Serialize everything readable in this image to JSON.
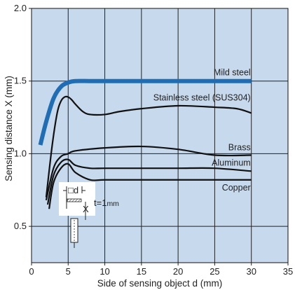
{
  "chart_data": {
    "type": "line",
    "xlabel": "Side of sensing object d (mm)",
    "ylabel": "Sensing distance X (mm)",
    "xlim": [
      0,
      35
    ],
    "ylim": [
      0.25,
      2.0
    ],
    "x_ticks": [
      "0",
      "5",
      "10",
      "15",
      "20",
      "25",
      "30",
      "35"
    ],
    "y_ticks": [
      "0.5",
      "1.0",
      "1.5",
      "2.0"
    ],
    "grid": true,
    "plot_background": "#c7d9ec",
    "series": [
      {
        "name": "Mild steel",
        "color": "#1f6eb5",
        "emphasis": true,
        "x": [
          1.2,
          2,
          3,
          4,
          5,
          6,
          8,
          10,
          15,
          20,
          25,
          30
        ],
        "y": [
          1.06,
          1.22,
          1.38,
          1.46,
          1.49,
          1.5,
          1.5,
          1.5,
          1.5,
          1.5,
          1.5,
          1.5
        ]
      },
      {
        "name": "Stainless steel (SUS304)",
        "color": "#111111",
        "x": [
          2,
          2.8,
          3.5,
          4,
          4.5,
          5,
          5.5,
          6,
          7,
          8,
          10,
          12,
          15,
          20,
          25,
          28,
          30
        ],
        "y": [
          0.7,
          1.05,
          1.28,
          1.36,
          1.39,
          1.39,
          1.37,
          1.34,
          1.29,
          1.27,
          1.27,
          1.29,
          1.31,
          1.33,
          1.32,
          1.31,
          1.28
        ]
      },
      {
        "name": "Brass",
        "color": "#111111",
        "x": [
          2,
          3,
          4,
          5,
          6,
          10,
          15,
          20,
          25,
          30
        ],
        "y": [
          0.68,
          0.9,
          0.98,
          1.0,
          1.02,
          1.04,
          1.05,
          1.03,
          0.99,
          0.99
        ]
      },
      {
        "name": "Aluminum",
        "color": "#111111",
        "x": [
          2.2,
          3,
          4,
          5,
          6,
          8,
          10,
          15,
          20,
          25,
          30
        ],
        "y": [
          0.65,
          0.85,
          0.94,
          0.96,
          0.92,
          0.9,
          0.9,
          0.9,
          0.9,
          0.9,
          0.88
        ]
      },
      {
        "name": "Copper",
        "color": "#111111",
        "x": [
          2.4,
          3,
          4,
          5,
          6,
          8,
          10,
          15,
          20,
          25,
          30
        ],
        "y": [
          0.62,
          0.8,
          0.9,
          0.93,
          0.87,
          0.82,
          0.82,
          0.82,
          0.82,
          0.82,
          0.82
        ]
      }
    ],
    "annotations": {
      "square_label": "□d",
      "thickness_label": "t=1",
      "thickness_unit": "mm",
      "distance_label": "X"
    }
  }
}
